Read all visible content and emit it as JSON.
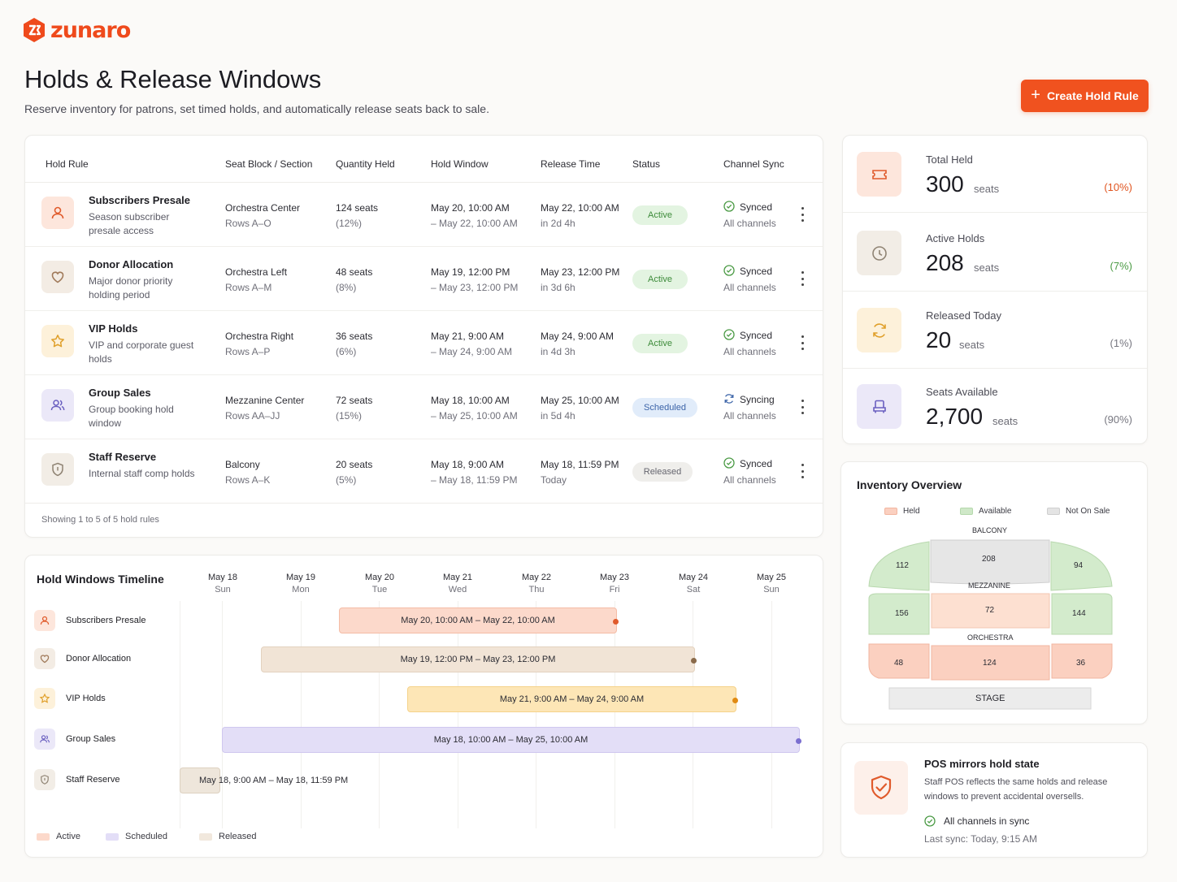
{
  "brand": {
    "name": "zunaro",
    "accent": "#f0521f"
  },
  "page": {
    "title": "Holds & Release Windows",
    "subtitle": "Reserve inventory for patrons, set timed holds, and automatically release seats back to sale.",
    "create_label": "Create Hold Rule"
  },
  "table": {
    "headers": [
      "Hold Rule",
      "Seat Block / Section",
      "Quantity Held",
      "Hold Window",
      "Release Time",
      "Status",
      "Channel Sync"
    ],
    "rows": [
      {
        "icon": "user-icon",
        "name": "Subscribers Presale",
        "desc": "Season subscriber presale access",
        "section": "Orchestra Center",
        "rows": "Rows A–O",
        "qty": "124 seats",
        "pct": "(12%)",
        "win_start": "May 20, 10:00 AM",
        "win_end": "– May 22, 10:00 AM",
        "release": "May 22, 10:00 AM",
        "release_in": "in 2d 4h",
        "status": "Active",
        "sync": "Synced",
        "channels": "All channels"
      },
      {
        "icon": "heart-icon",
        "name": "Donor Allocation",
        "desc": "Major donor priority holding period",
        "section": "Orchestra Left",
        "rows": "Rows A–M",
        "qty": "48 seats",
        "pct": "(8%)",
        "win_start": "May 19, 12:00 PM",
        "win_end": "– May 23, 12:00 PM",
        "release": "May 23, 12:00 PM",
        "release_in": "in 3d 6h",
        "status": "Active",
        "sync": "Synced",
        "channels": "All channels"
      },
      {
        "icon": "star-icon",
        "name": "VIP Holds",
        "desc": "VIP and corporate guest holds",
        "section": "Orchestra Right",
        "rows": "Rows A–P",
        "qty": "36 seats",
        "pct": "(6%)",
        "win_start": "May 21, 9:00 AM",
        "win_end": "– May 24, 9:00 AM",
        "release": "May 24, 9:00 AM",
        "release_in": "in 4d 3h",
        "status": "Active",
        "sync": "Synced",
        "channels": "All channels"
      },
      {
        "icon": "group-icon",
        "name": "Group Sales",
        "desc": "Group booking hold window",
        "section": "Mezzanine Center",
        "rows": "Rows AA–JJ",
        "qty": "72 seats",
        "pct": "(15%)",
        "win_start": "May 18, 10:00 AM",
        "win_end": "– May 25, 10:00 AM",
        "release": "May 25, 10:00 AM",
        "release_in": "in 5d 4h",
        "status": "Scheduled",
        "sync": "Syncing",
        "channels": "All channels"
      },
      {
        "icon": "shield-icon",
        "name": "Staff Reserve",
        "desc": "Internal staff comp holds",
        "section": "Balcony",
        "rows": "Rows A–K",
        "qty": "20 seats",
        "pct": "(5%)",
        "win_start": "May 18, 9:00 AM",
        "win_end": "– May 18, 11:59 PM",
        "release": "May 18, 11:59 PM",
        "release_in": "Today",
        "status": "Released",
        "sync": "Synced",
        "channels": "All channels"
      }
    ],
    "showing": "Showing 1 to 5 of 5 hold rules"
  },
  "stats": [
    {
      "icon": "ticket-icon",
      "label": "Total Held",
      "value": "300",
      "unit": "seats",
      "pct": "(10%)",
      "pct_color": "#e0541f"
    },
    {
      "icon": "clock-icon",
      "label": "Active Holds",
      "value": "208",
      "unit": "seats",
      "pct": "(7%)",
      "pct_color": "#4a9a44"
    },
    {
      "icon": "refresh-icon",
      "label": "Released Today",
      "value": "20",
      "unit": "seats",
      "pct": "(1%)",
      "pct_color": "#777780"
    },
    {
      "icon": "seat-icon",
      "label": "Seats Available",
      "value": "2,700",
      "unit": "seats",
      "pct": "(90%)",
      "pct_color": "#777780"
    }
  ],
  "inventory": {
    "title": "Inventory Overview",
    "legend": [
      "Held",
      "Available",
      "Not On Sale"
    ],
    "sections": {
      "balcony": "BALCONY",
      "mezzanine": "MEZZANINE",
      "orchestra": "ORCHESTRA",
      "stage": "STAGE"
    },
    "balcony": [
      "112",
      "208",
      "94"
    ],
    "mezzanine": [
      "156",
      "72",
      "144"
    ],
    "orchestra": [
      "48",
      "124",
      "36"
    ]
  },
  "pos": {
    "title": "POS mirrors hold state",
    "desc": "Staff POS reflects the same holds and release windows to prevent accidental oversells.",
    "sync": "All channels in sync",
    "last": "Last sync: Today, 9:15 AM"
  },
  "timeline": {
    "title": "Hold Windows Timeline",
    "days": [
      {
        "date": "May 18",
        "wd": "Sun"
      },
      {
        "date": "May 19",
        "wd": "Mon"
      },
      {
        "date": "May 20",
        "wd": "Tue"
      },
      {
        "date": "May 21",
        "wd": "Wed"
      },
      {
        "date": "May 22",
        "wd": "Thu"
      },
      {
        "date": "May 23",
        "wd": "Fri"
      },
      {
        "date": "May 24",
        "wd": "Sat"
      },
      {
        "date": "May 25",
        "wd": "Sun"
      }
    ],
    "rows": [
      {
        "name": "Subscribers Presale",
        "bar": "May 20, 10:00 AM  –  May 22, 10:00 AM"
      },
      {
        "name": "Donor Allocation",
        "bar": "May 19, 12:00 PM  –  May 23, 12:00 PM"
      },
      {
        "name": "VIP Holds",
        "bar": "May 21, 9:00 AM  –  May 24, 9:00 AM"
      },
      {
        "name": "Group Sales",
        "bar": "May 18, 10:00 AM  –  May 25, 10:00 AM"
      },
      {
        "name": "Staff Reserve",
        "bar": "May 18, 9:00 AM  –  May 18, 11:59 PM"
      }
    ],
    "legend": [
      "Active",
      "Scheduled",
      "Released"
    ]
  }
}
